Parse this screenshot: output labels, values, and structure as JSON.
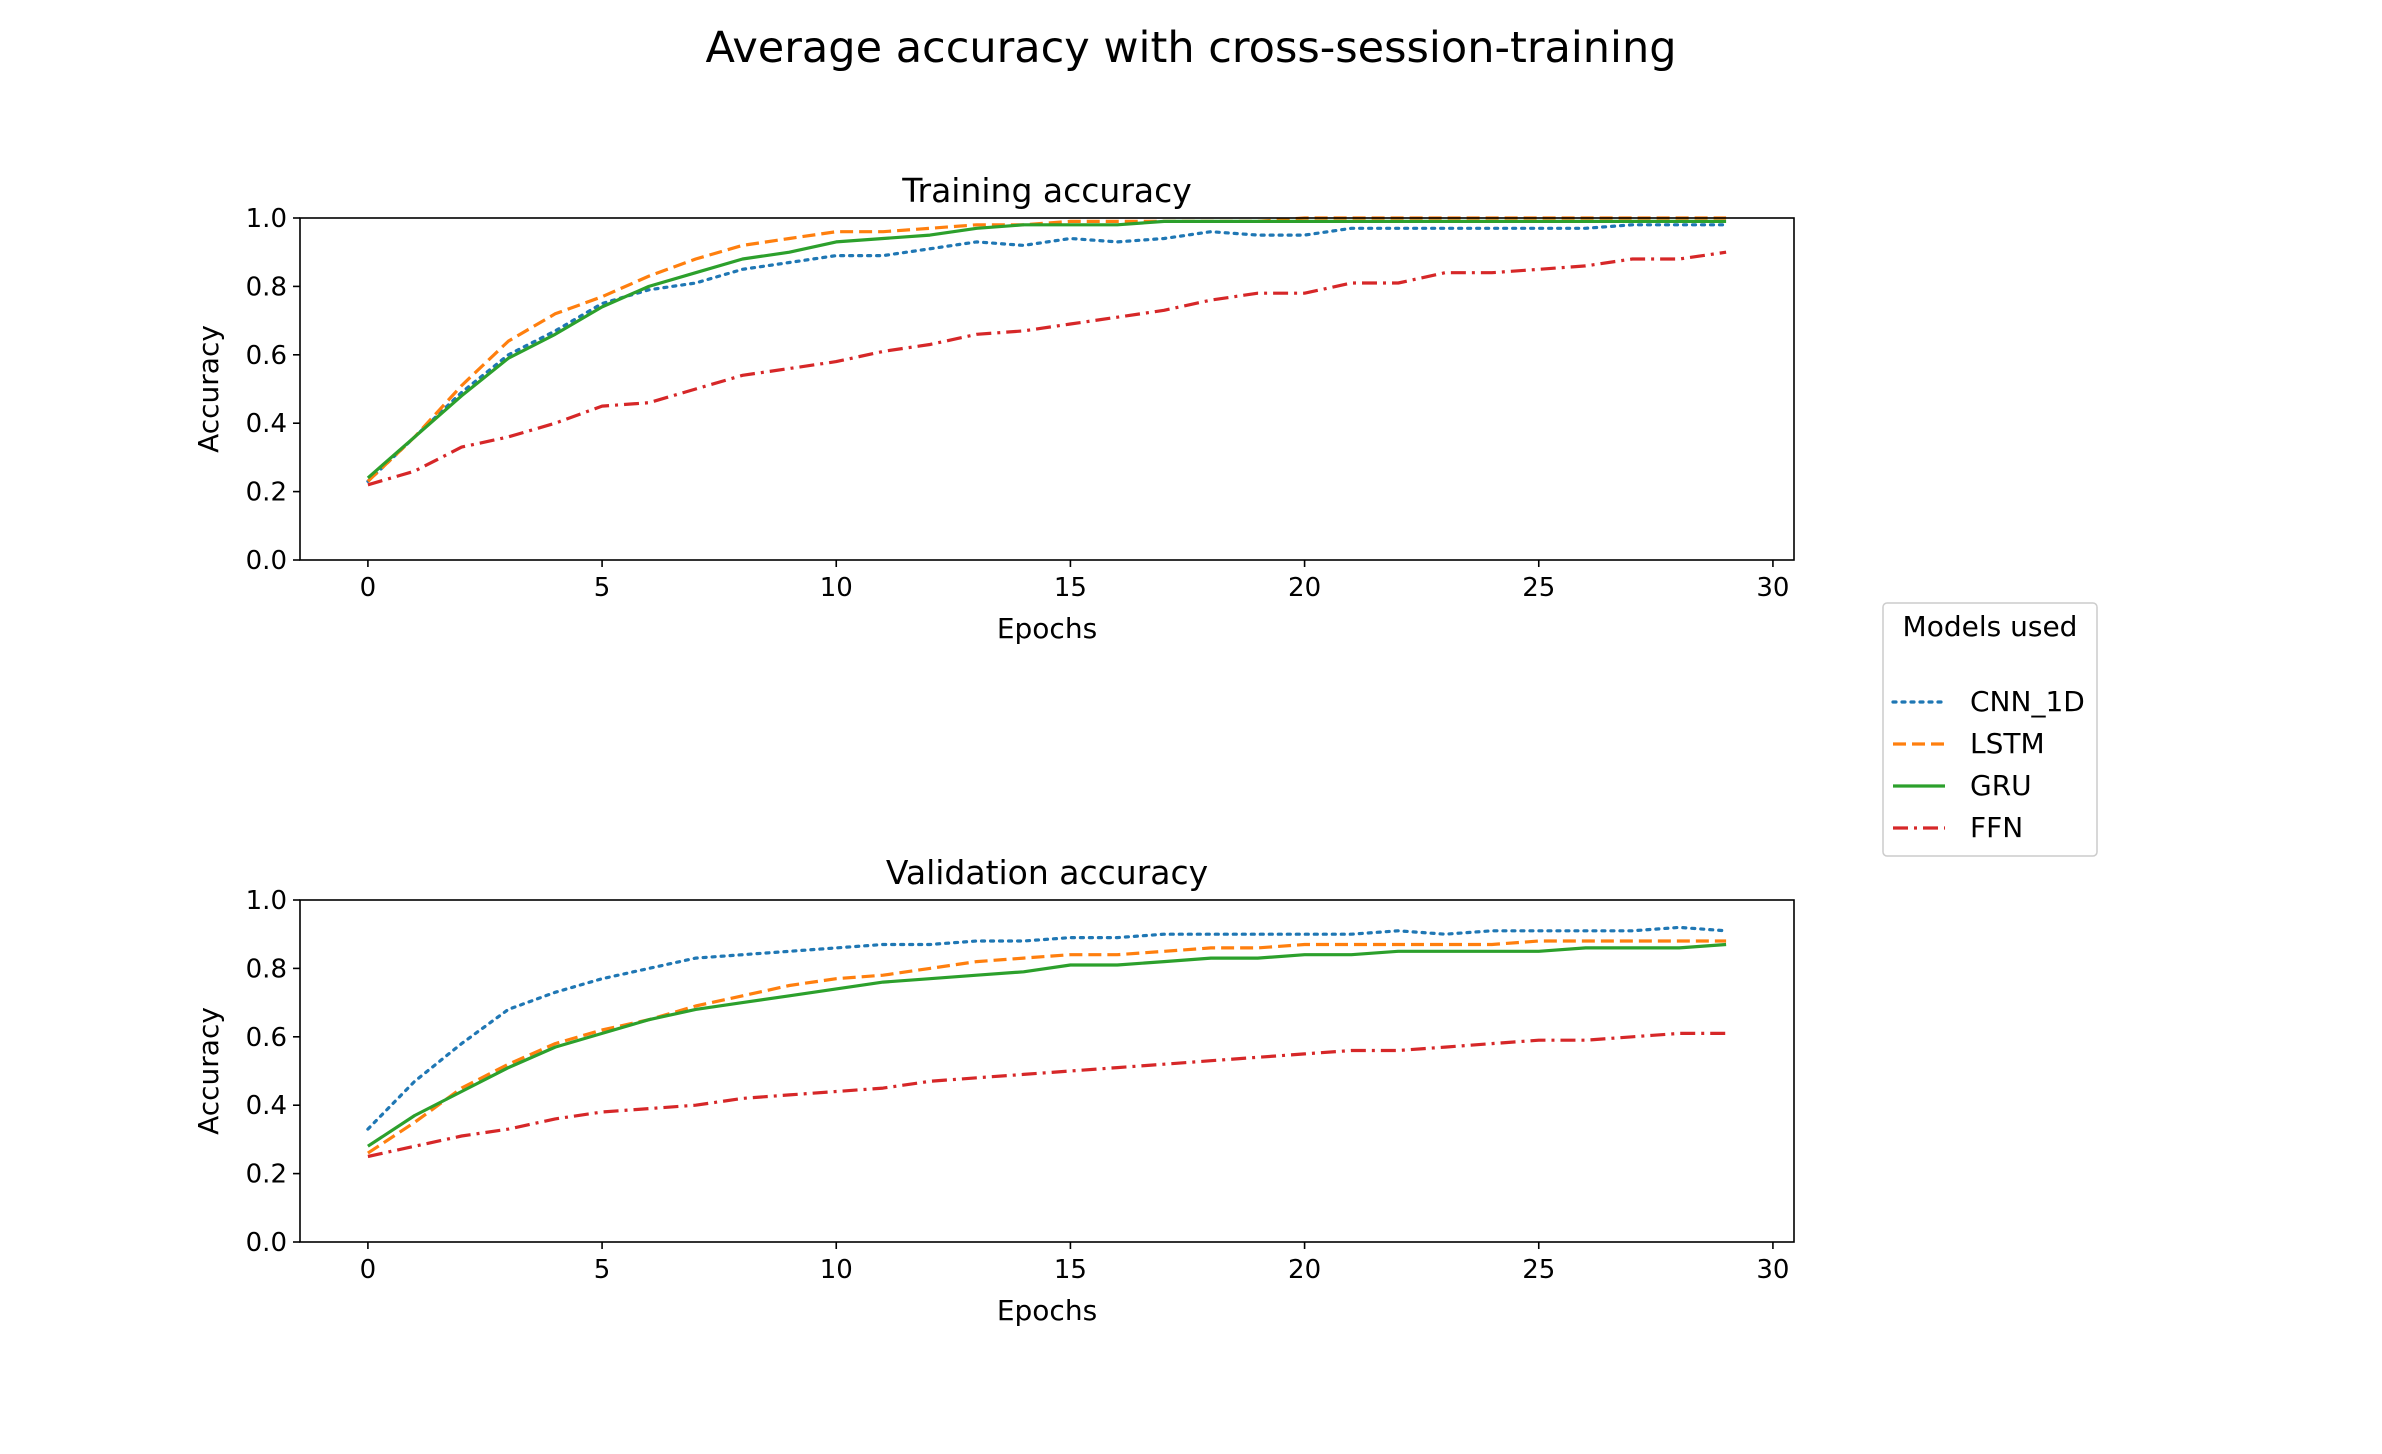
{
  "figure": {
    "title": "Average accuracy with cross-session-training"
  },
  "legend": {
    "title": "Models used",
    "placement": "center-right",
    "entries": [
      "CNN_1D",
      "LSTM",
      "GRU",
      "FFN"
    ]
  },
  "series_style": {
    "CNN_1D": {
      "color": "#1f77b4",
      "dash": "dotted"
    },
    "LSTM": {
      "color": "#ff7f0e",
      "dash": "dashed"
    },
    "GRU": {
      "color": "#2ca02c",
      "dash": "solid"
    },
    "FFN": {
      "color": "#d62728",
      "dash": "dashdot"
    }
  },
  "chart_data": [
    {
      "type": "line",
      "title": "Training accuracy",
      "xlabel": "Epochs",
      "ylabel": "Accuracy",
      "xlim": [
        -1.45,
        30.45
      ],
      "ylim": [
        0.0,
        1.0
      ],
      "xticks": [
        0,
        5,
        10,
        15,
        20,
        25,
        30
      ],
      "yticks": [
        0.0,
        0.2,
        0.4,
        0.6,
        0.8,
        1.0
      ],
      "xticklabels": [
        "0",
        "5",
        "10",
        "15",
        "20",
        "25",
        "30"
      ],
      "yticklabels": [
        "0.0",
        "0.2",
        "0.4",
        "0.6",
        "0.8",
        "1.0"
      ],
      "grid": false,
      "x": [
        0,
        1,
        2,
        3,
        4,
        5,
        6,
        7,
        8,
        9,
        10,
        11,
        12,
        13,
        14,
        15,
        16,
        17,
        18,
        19,
        20,
        21,
        22,
        23,
        24,
        25,
        26,
        27,
        28,
        29
      ],
      "series": [
        {
          "name": "CNN_1D",
          "values": [
            0.23,
            0.36,
            0.49,
            0.6,
            0.67,
            0.75,
            0.79,
            0.81,
            0.85,
            0.87,
            0.89,
            0.89,
            0.91,
            0.93,
            0.92,
            0.94,
            0.93,
            0.94,
            0.96,
            0.95,
            0.95,
            0.97,
            0.97,
            0.97,
            0.97,
            0.97,
            0.97,
            0.98,
            0.98,
            0.98
          ]
        },
        {
          "name": "LSTM",
          "values": [
            0.23,
            0.36,
            0.51,
            0.64,
            0.72,
            0.77,
            0.83,
            0.88,
            0.92,
            0.94,
            0.96,
            0.96,
            0.97,
            0.98,
            0.98,
            0.99,
            0.99,
            0.99,
            0.99,
            0.99,
            1.0,
            1.0,
            1.0,
            1.0,
            1.0,
            1.0,
            1.0,
            1.0,
            1.0,
            1.0
          ]
        },
        {
          "name": "GRU",
          "values": [
            0.24,
            0.36,
            0.48,
            0.59,
            0.66,
            0.74,
            0.8,
            0.84,
            0.88,
            0.9,
            0.93,
            0.94,
            0.95,
            0.97,
            0.98,
            0.98,
            0.98,
            0.99,
            0.99,
            0.99,
            0.99,
            0.99,
            0.99,
            0.99,
            0.99,
            0.99,
            0.99,
            0.99,
            0.99,
            0.99
          ]
        },
        {
          "name": "FFN",
          "values": [
            0.22,
            0.26,
            0.33,
            0.36,
            0.4,
            0.45,
            0.46,
            0.5,
            0.54,
            0.56,
            0.58,
            0.61,
            0.63,
            0.66,
            0.67,
            0.69,
            0.71,
            0.73,
            0.76,
            0.78,
            0.78,
            0.81,
            0.81,
            0.84,
            0.84,
            0.85,
            0.86,
            0.88,
            0.88,
            0.9
          ]
        }
      ]
    },
    {
      "type": "line",
      "title": "Validation accuracy",
      "xlabel": "Epochs",
      "ylabel": "Accuracy",
      "xlim": [
        -1.45,
        30.45
      ],
      "ylim": [
        0.0,
        1.0
      ],
      "xticks": [
        0,
        5,
        10,
        15,
        20,
        25,
        30
      ],
      "yticks": [
        0.0,
        0.2,
        0.4,
        0.6,
        0.8,
        1.0
      ],
      "xticklabels": [
        "0",
        "5",
        "10",
        "15",
        "20",
        "25",
        "30"
      ],
      "yticklabels": [
        "0.0",
        "0.2",
        "0.4",
        "0.6",
        "0.8",
        "1.0"
      ],
      "grid": false,
      "x": [
        0,
        1,
        2,
        3,
        4,
        5,
        6,
        7,
        8,
        9,
        10,
        11,
        12,
        13,
        14,
        15,
        16,
        17,
        18,
        19,
        20,
        21,
        22,
        23,
        24,
        25,
        26,
        27,
        28,
        29
      ],
      "series": [
        {
          "name": "CNN_1D",
          "values": [
            0.33,
            0.47,
            0.58,
            0.68,
            0.73,
            0.77,
            0.8,
            0.83,
            0.84,
            0.85,
            0.86,
            0.87,
            0.87,
            0.88,
            0.88,
            0.89,
            0.89,
            0.9,
            0.9,
            0.9,
            0.9,
            0.9,
            0.91,
            0.9,
            0.91,
            0.91,
            0.91,
            0.91,
            0.92,
            0.91
          ]
        },
        {
          "name": "LSTM",
          "values": [
            0.26,
            0.35,
            0.45,
            0.52,
            0.58,
            0.62,
            0.65,
            0.69,
            0.72,
            0.75,
            0.77,
            0.78,
            0.8,
            0.82,
            0.83,
            0.84,
            0.84,
            0.85,
            0.86,
            0.86,
            0.87,
            0.87,
            0.87,
            0.87,
            0.87,
            0.88,
            0.88,
            0.88,
            0.88,
            0.88
          ]
        },
        {
          "name": "GRU",
          "values": [
            0.28,
            0.37,
            0.44,
            0.51,
            0.57,
            0.61,
            0.65,
            0.68,
            0.7,
            0.72,
            0.74,
            0.76,
            0.77,
            0.78,
            0.79,
            0.81,
            0.81,
            0.82,
            0.83,
            0.83,
            0.84,
            0.84,
            0.85,
            0.85,
            0.85,
            0.85,
            0.86,
            0.86,
            0.86,
            0.87
          ]
        },
        {
          "name": "FFN",
          "values": [
            0.25,
            0.28,
            0.31,
            0.33,
            0.36,
            0.38,
            0.39,
            0.4,
            0.42,
            0.43,
            0.44,
            0.45,
            0.47,
            0.48,
            0.49,
            0.5,
            0.51,
            0.52,
            0.53,
            0.54,
            0.55,
            0.56,
            0.56,
            0.57,
            0.58,
            0.59,
            0.59,
            0.6,
            0.61,
            0.61
          ]
        }
      ]
    }
  ]
}
